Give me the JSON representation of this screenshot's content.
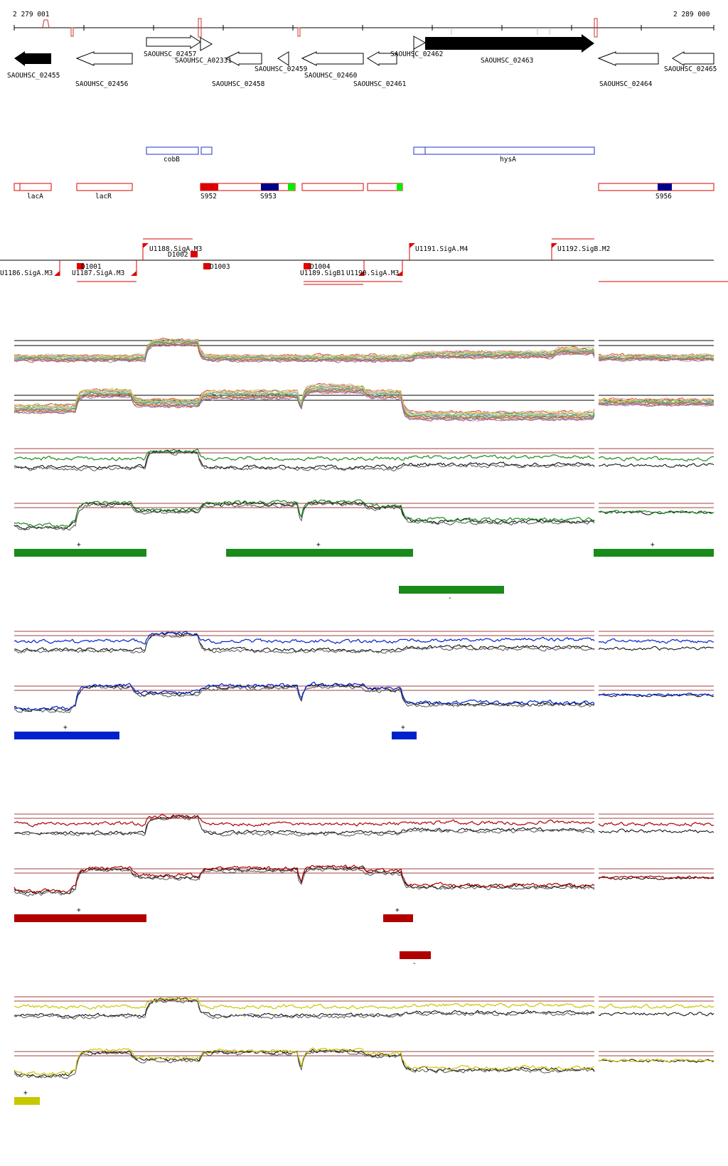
{
  "axis": {
    "start_label": "2 279 001",
    "end_label": "2 289 000"
  },
  "genes": {
    "locus_labels": [
      "SAOUHSC_02455",
      "SAOUHSC_02456",
      "SAOUHSC_02457",
      "SAOUHSC_A02331",
      "SAOUHSC_02458",
      "SAOUHSC_02459",
      "SAOUHSC_02460",
      "SAOUHSC_02461",
      "SAOUHSC_02462",
      "SAOUHSC_02463",
      "SAOUHSC_02464",
      "SAOUHSC_02465"
    ],
    "names": [
      "cobB",
      "hysA"
    ]
  },
  "operons": {
    "labels": [
      "lacA",
      "lacR",
      "S952",
      "S953",
      "S956"
    ]
  },
  "promoters": {
    "labels": [
      "U1186.SigA.M3",
      "D1001",
      "U1187.SigA.M3",
      "U1188.SigA.M3",
      "D1002",
      "D1003",
      "D1004",
      "U1189.SigB1",
      "U1190.SigA.M3",
      "U1191.SigA.M4",
      "U1192.SigB.M2"
    ]
  },
  "segments": {
    "plus": "+",
    "minus": "-"
  },
  "colors": {
    "green": "#1a8a1a",
    "blue": "#0022cc",
    "red": "#b00000",
    "yellow": "#c8c800",
    "feature_red": "#dd0000",
    "operon_blue": "#000088",
    "operon_green": "#00ee00",
    "gene_blue": "#2233cc"
  }
}
